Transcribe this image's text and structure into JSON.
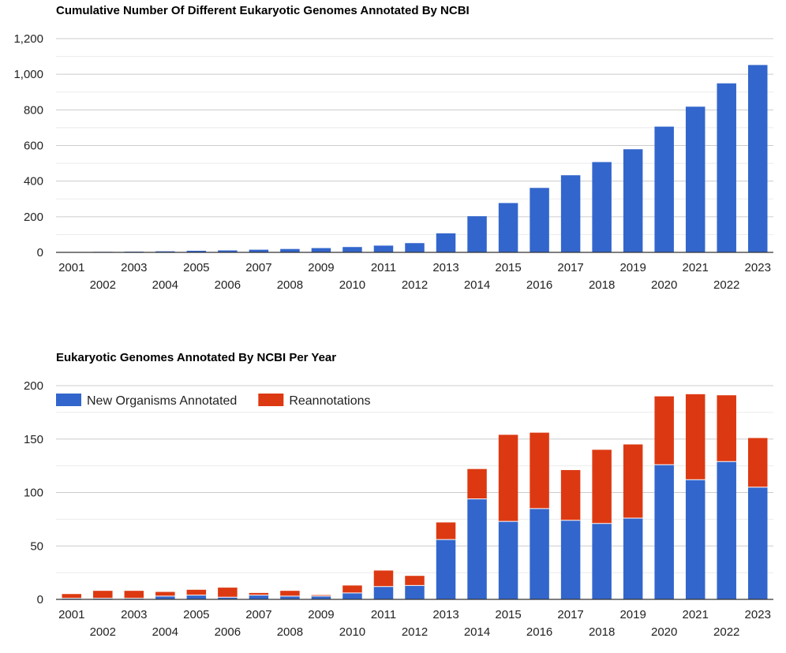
{
  "colors": {
    "blue": "#3366cc",
    "red": "#dc3912",
    "grid": "#cccccc",
    "minor_grid": "#ebebeb",
    "axis": "#333333",
    "text": "#222222"
  },
  "chart_data": [
    {
      "type": "bar",
      "title": "Cumulative Number Of Different Eukaryotic Genomes Annotated By NCBI",
      "categories": [
        "2001",
        "2002",
        "2003",
        "2004",
        "2005",
        "2006",
        "2007",
        "2008",
        "2009",
        "2010",
        "2011",
        "2012",
        "2013",
        "2014",
        "2015",
        "2016",
        "2017",
        "2018",
        "2019",
        "2020",
        "2021",
        "2022",
        "2023"
      ],
      "series": [
        {
          "values": [
            2,
            3,
            4,
            6,
            9,
            11,
            15,
            19,
            24,
            30,
            38,
            52,
            107,
            203,
            277,
            362,
            433,
            507,
            579,
            706,
            818,
            949,
            1052
          ]
        }
      ],
      "ylim": [
        0,
        1200
      ],
      "yticks": [
        0,
        200,
        400,
        600,
        800,
        1000,
        1200
      ],
      "ytick_labels": [
        "0",
        "200",
        "400",
        "600",
        "800",
        "1,000",
        "1,200"
      ],
      "grid": true,
      "legend": "none"
    },
    {
      "type": "bar",
      "stacked": true,
      "title": "Eukaryotic Genomes Annotated By NCBI Per Year",
      "categories": [
        "2001",
        "2002",
        "2003",
        "2004",
        "2005",
        "2006",
        "2007",
        "2008",
        "2009",
        "2010",
        "2011",
        "2012",
        "2013",
        "2014",
        "2015",
        "2016",
        "2017",
        "2018",
        "2019",
        "2020",
        "2021",
        "2022",
        "2023"
      ],
      "series": [
        {
          "name": "New Organisms Annotated",
          "values": [
            1,
            1,
            1,
            3,
            4,
            2,
            4,
            3,
            3,
            6,
            12,
            13,
            56,
            94,
            73,
            85,
            74,
            71,
            76,
            126,
            112,
            129,
            105
          ]
        },
        {
          "name": "Reannotations",
          "values": [
            4,
            7,
            7,
            4,
            5,
            9,
            2,
            5,
            1,
            7,
            15,
            9,
            16,
            28,
            81,
            71,
            47,
            69,
            69,
            64,
            80,
            62,
            46
          ]
        }
      ],
      "ylim": [
        0,
        200
      ],
      "yticks": [
        0,
        50,
        100,
        150,
        200
      ],
      "ytick_labels": [
        "0",
        "50",
        "100",
        "150",
        "200"
      ],
      "grid": true,
      "legend": "top-left"
    }
  ]
}
